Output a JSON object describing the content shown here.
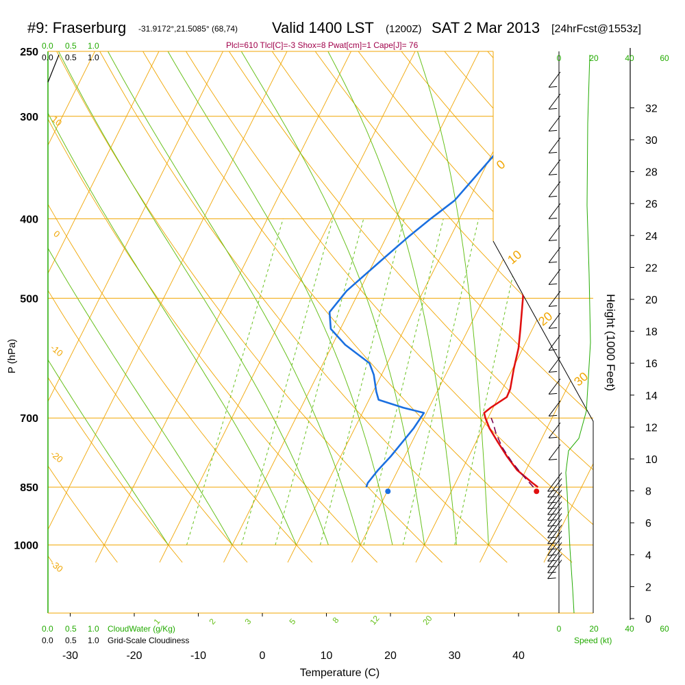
{
  "header": {
    "title_station": "#9: Fraserburg",
    "title_coords": "-31.9172°,21.5085° (68,74)",
    "title_valid": "Valid 1400 LST",
    "title_utc": "(1200Z)",
    "title_date": "SAT 2 Mar 2013",
    "title_fcst": "[24hrFcst@1553z]",
    "indices": "Plcl=610 Tlcl[C]=-3 Shox=8 Pwat[cm]=1 Cape[J]= 76"
  },
  "labels": {
    "cloudwater_ticks": [
      "0.0",
      "0.5",
      "1.0"
    ],
    "cloudwater_label": "CloudWater (g/Kg)",
    "cloudiness_ticks": [
      "0.0",
      "0.5",
      "1.0"
    ],
    "cloudiness_label": "Grid-Scale Cloudiness",
    "speed_ticks": [
      "0",
      "20",
      "40",
      "60"
    ],
    "speed_label": "Speed (kt)"
  },
  "colors": {
    "isotherm": "#f0a500",
    "dry_adiabat": "#f0a500",
    "moist_adiabat": "#66c01a",
    "mixing_ratio": "#66c01a",
    "temperature": "#e01010",
    "dewpoint": "#1a6fe0",
    "parcel": "#7a0050",
    "indices_text": "#a0004a",
    "green_text": "#22aa00"
  },
  "chart_data": {
    "type": "skew-t",
    "xlabel": "Temperature (C)",
    "ylabel": "P (hPa)",
    "y2label": "Height (1000 Feet)",
    "x_ticks": [
      -30,
      -20,
      -10,
      0,
      10,
      20,
      30,
      40
    ],
    "pressure_ticks": [
      250,
      300,
      400,
      500,
      700,
      850,
      1000
    ],
    "height_ticks": [
      0,
      2,
      4,
      6,
      8,
      10,
      12,
      14,
      16,
      18,
      20,
      22,
      24,
      26,
      28,
      30,
      32
    ],
    "isotherm_labels": [
      {
        "label": "10"
      },
      {
        "label": "0"
      },
      {
        "label": "-10"
      },
      {
        "label": "-20"
      },
      {
        "label": "-30"
      },
      {
        "label": "0"
      },
      {
        "label": "10"
      },
      {
        "label": "20"
      },
      {
        "label": "30"
      }
    ],
    "mixing_ratio_labels": [
      "1",
      "2",
      "3",
      "5",
      "8",
      "12",
      "20"
    ],
    "temperature": [
      {
        "p": 850,
        "t": 33.2
      },
      {
        "p": 840,
        "t": 32.0
      },
      {
        "p": 810,
        "t": 28.6
      },
      {
        "p": 780,
        "t": 26.0
      },
      {
        "p": 750,
        "t": 23.5
      },
      {
        "p": 720,
        "t": 21.0
      },
      {
        "p": 700,
        "t": 19.6
      },
      {
        "p": 690,
        "t": 19.0
      },
      {
        "p": 680,
        "t": 19.6
      },
      {
        "p": 660,
        "t": 21.3
      },
      {
        "p": 645,
        "t": 21.2
      },
      {
        "p": 610,
        "t": 20.2
      },
      {
        "p": 575,
        "t": 19.3
      },
      {
        "p": 545,
        "t": 18.1
      },
      {
        "p": 500,
        "t": 16.1
      },
      {
        "p": 450,
        "t": 13.4
      },
      {
        "p": 400,
        "t": 11.0
      },
      {
        "p": 350,
        "t": 8.3
      },
      {
        "p": 320,
        "t": 6.4
      },
      {
        "p": 300,
        "t": 5.2
      },
      {
        "p": 280,
        "t": 3.4
      },
      {
        "p": 260,
        "t": 1.7
      },
      {
        "p": 250,
        "t": 1.6
      }
    ],
    "dewpoint": [
      {
        "p": 850,
        "t": 6.4
      },
      {
        "p": 840,
        "t": 6.3
      },
      {
        "p": 810,
        "t": 6.9
      },
      {
        "p": 780,
        "t": 7.8
      },
      {
        "p": 750,
        "t": 8.5
      },
      {
        "p": 720,
        "t": 9.2
      },
      {
        "p": 690,
        "t": 9.6
      },
      {
        "p": 680,
        "t": 6.0
      },
      {
        "p": 665,
        "t": 1.5
      },
      {
        "p": 650,
        "t": 0.5
      },
      {
        "p": 620,
        "t": -1.2
      },
      {
        "p": 600,
        "t": -2.8
      },
      {
        "p": 570,
        "t": -8.0
      },
      {
        "p": 545,
        "t": -11.5
      },
      {
        "p": 520,
        "t": -13.0
      },
      {
        "p": 490,
        "t": -12.0
      },
      {
        "p": 450,
        "t": -9.0
      },
      {
        "p": 420,
        "t": -6.5
      },
      {
        "p": 400,
        "t": -4.5
      },
      {
        "p": 380,
        "t": -2.2
      },
      {
        "p": 350,
        "t": -0.5
      },
      {
        "p": 330,
        "t": 0.7
      },
      {
        "p": 300,
        "t": -1.0
      },
      {
        "p": 280,
        "t": -2.0
      },
      {
        "p": 265,
        "t": -2.0
      },
      {
        "p": 250,
        "t": -2.3
      }
    ],
    "parcel": [
      {
        "p": 850,
        "t": 32.5
      },
      {
        "p": 820,
        "t": 29.7
      },
      {
        "p": 790,
        "t": 27.0
      },
      {
        "p": 760,
        "t": 24.5
      },
      {
        "p": 730,
        "t": 22.4
      },
      {
        "p": 710,
        "t": 21.2
      },
      {
        "p": 700,
        "t": 20.5
      }
    ],
    "surface_temperature": {
      "p": 860,
      "t": 33.3
    },
    "surface_dewpoint": {
      "p": 860,
      "t": 10.1
    },
    "wind_barbs_count": 34
  }
}
